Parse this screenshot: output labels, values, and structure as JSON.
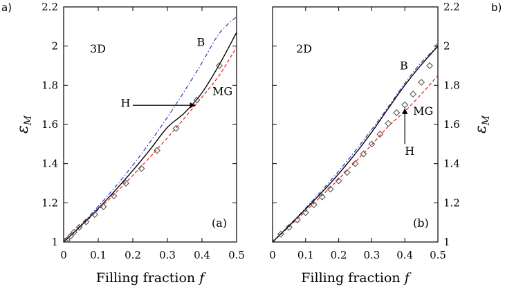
{
  "figure": {
    "corner_left": "a)",
    "corner_right": "b)"
  },
  "chart_data": [
    {
      "type": "line",
      "panel_label": "(a)",
      "dimension_label": "3D",
      "xlabel": "Filling fraction",
      "xlabel_var": "f",
      "ylabel": "ε",
      "ylabel_sub": "M",
      "xlim": [
        0,
        0.5
      ],
      "ylim": [
        1,
        2.2
      ],
      "xticks": [
        "0",
        "0.1",
        "0.2",
        "0.3",
        "0.4",
        "0.5"
      ],
      "yticks": [
        "1",
        "1.2",
        "1.4",
        "1.6",
        "1.8",
        "2",
        "2.2"
      ],
      "yaxis_side": "left",
      "colors": {
        "H": "#000000",
        "B": "#3333cc",
        "MG": "#e0201b",
        "markers": "#555555"
      },
      "series": [
        {
          "name": "H",
          "style": "solid",
          "x": [
            0,
            0.05,
            0.1,
            0.15,
            0.2,
            0.25,
            0.3,
            0.35,
            0.4,
            0.45,
            0.5
          ],
          "y": [
            1,
            1.083,
            1.171,
            1.265,
            1.365,
            1.472,
            1.585,
            1.66,
            1.762,
            1.905,
            2.07
          ]
        },
        {
          "name": "B",
          "style": "dash-dot",
          "x": [
            0,
            0.05,
            0.1,
            0.15,
            0.2,
            0.25,
            0.3,
            0.35,
            0.4,
            0.45,
            0.5
          ],
          "y": [
            1,
            1.088,
            1.182,
            1.283,
            1.392,
            1.51,
            1.637,
            1.772,
            1.915,
            2.065,
            2.15
          ]
        },
        {
          "name": "MG",
          "style": "dashed",
          "x": [
            0,
            0.05,
            0.1,
            0.15,
            0.2,
            0.25,
            0.3,
            0.35,
            0.4,
            0.45,
            0.5
          ],
          "y": [
            1,
            1.08,
            1.164,
            1.25,
            1.34,
            1.434,
            1.532,
            1.634,
            1.74,
            1.851,
            1.995
          ]
        },
        {
          "name": "data",
          "style": "diamond-markers",
          "x": [
            0,
            0.005,
            0.01,
            0.02,
            0.03,
            0.045,
            0.065,
            0.09,
            0.115,
            0.145,
            0.18,
            0.225,
            0.27,
            0.325,
            0.385,
            0.45
          ],
          "y": [
            1,
            1.005,
            1.01,
            1.03,
            1.05,
            1.075,
            1.103,
            1.14,
            1.18,
            1.235,
            1.3,
            1.375,
            1.467,
            1.58,
            1.725,
            1.9
          ]
        }
      ],
      "annotations": [
        {
          "text": "B",
          "x": 0.385,
          "y": 2.0
        },
        {
          "text": "MG",
          "x": 0.43,
          "y": 1.75
        },
        {
          "text": "H",
          "x": 0.165,
          "y": 1.69
        }
      ],
      "arrow": {
        "from": [
          0.2,
          1.698
        ],
        "to": [
          0.38,
          1.698
        ]
      }
    },
    {
      "type": "line",
      "panel_label": "(b)",
      "dimension_label": "2D",
      "xlabel": "Filling fraction",
      "xlabel_var": "f",
      "ylabel": "ε",
      "ylabel_sub": "M",
      "xlim": [
        0,
        0.5
      ],
      "ylim": [
        1,
        2.2
      ],
      "xticks": [
        "0",
        "0.1",
        "0.2",
        "0.3",
        "0.4",
        "0.5"
      ],
      "yticks": [
        "1",
        "1.2",
        "1.4",
        "1.6",
        "1.8",
        "2",
        "2.2"
      ],
      "yaxis_side": "right",
      "colors": {
        "H": "#000000",
        "B": "#3333cc",
        "MG": "#e0201b",
        "markers": "#555555"
      },
      "series": [
        {
          "name": "H",
          "style": "solid",
          "x": [
            0,
            0.05,
            0.1,
            0.15,
            0.2,
            0.25,
            0.3,
            0.35,
            0.4,
            0.45,
            0.5
          ],
          "y": [
            1,
            1.083,
            1.168,
            1.255,
            1.348,
            1.45,
            1.561,
            1.682,
            1.8,
            1.905,
            2.0
          ]
        },
        {
          "name": "B",
          "style": "dash-dot",
          "x": [
            0,
            0.05,
            0.1,
            0.15,
            0.2,
            0.25,
            0.3,
            0.35,
            0.4,
            0.45,
            0.5
          ],
          "y": [
            1,
            1.085,
            1.173,
            1.265,
            1.362,
            1.465,
            1.575,
            1.69,
            1.81,
            1.917,
            2.0
          ]
        },
        {
          "name": "MG",
          "style": "dashed",
          "x": [
            0,
            0.05,
            0.1,
            0.15,
            0.2,
            0.25,
            0.3,
            0.35,
            0.4,
            0.45,
            0.5
          ],
          "y": [
            1,
            1.078,
            1.157,
            1.238,
            1.321,
            1.408,
            1.497,
            1.59,
            1.667,
            1.755,
            1.85
          ]
        },
        {
          "name": "data",
          "style": "diamond-markers",
          "x": [
            0,
            0.025,
            0.05,
            0.075,
            0.1,
            0.125,
            0.15,
            0.175,
            0.2,
            0.225,
            0.25,
            0.275,
            0.3,
            0.325,
            0.35,
            0.375,
            0.4,
            0.425,
            0.45,
            0.475,
            0.5
          ],
          "y": [
            1,
            1.04,
            1.075,
            1.113,
            1.15,
            1.19,
            1.23,
            1.27,
            1.312,
            1.355,
            1.4,
            1.45,
            1.5,
            1.55,
            1.605,
            1.66,
            1.7,
            1.755,
            1.815,
            1.9,
            2.0
          ]
        }
      ],
      "annotations": [
        {
          "text": "B",
          "x": 0.385,
          "y": 1.88
        },
        {
          "text": "MG",
          "x": 0.425,
          "y": 1.65
        },
        {
          "text": "H",
          "x": 0.4,
          "y": 1.445
        }
      ],
      "arrow": {
        "from": [
          0.4,
          1.5
        ],
        "to": [
          0.4,
          1.68
        ]
      }
    }
  ]
}
